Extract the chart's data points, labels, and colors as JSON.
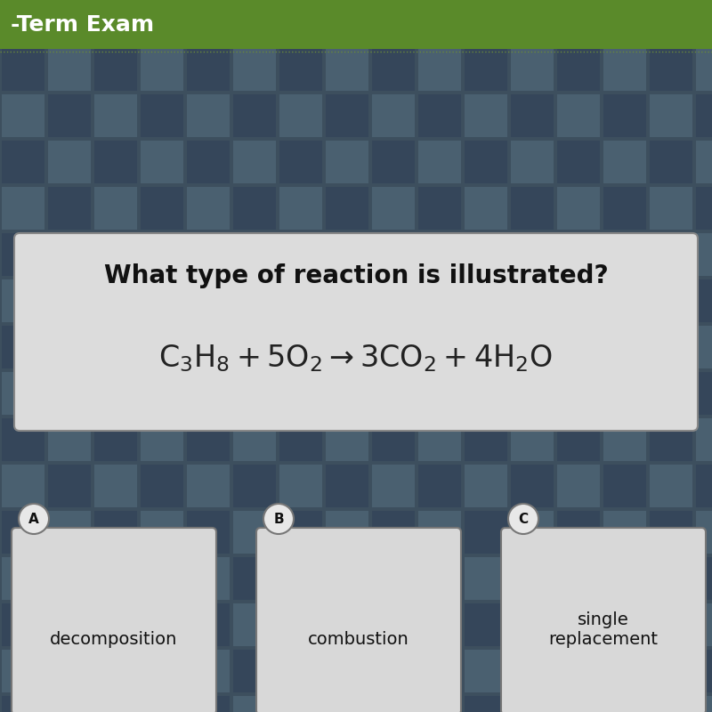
{
  "bg_main_color": "#3d4f5e",
  "tile_dark_color": "#35465a",
  "tile_light_color": "#4a6070",
  "header_text": "-Term Exam",
  "header_text_color": "#ffffff",
  "header_bg_color": "#5a8a2a",
  "question_box_bg": "#dcdcdc",
  "question_box_border": "#888888",
  "question_text": "What type of reaction is illustrated?",
  "question_text_color": "#111111",
  "equation_color": "#222222",
  "answer_box_bg": "#d8d8d8",
  "answer_box_border": "#777777",
  "answer_a_text": "decomposition",
  "answer_b_text": "combustion",
  "answer_c_text": "single\nreplacement",
  "answer_label_bg": "#e8e8e8",
  "answer_label_border": "#777777",
  "answer_text_color": "#111111",
  "tile_size": 52
}
